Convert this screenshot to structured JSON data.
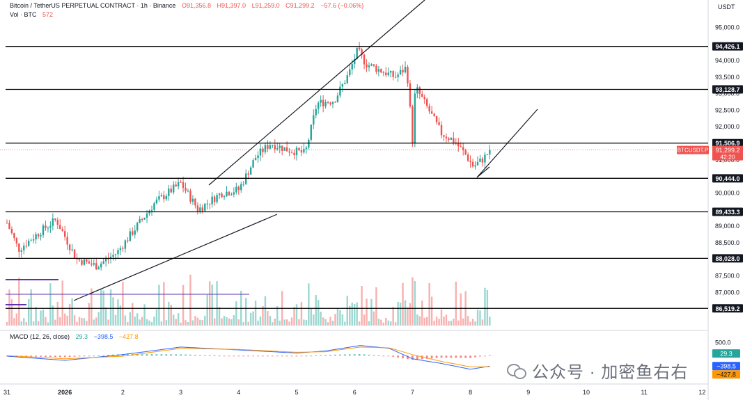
{
  "header": {
    "symbol": "Bitcoin / TetherUS PERPETUAL CONTRACT · 1h · Binance",
    "o": "O91,356.8",
    "h": "H91,397.0",
    "l": "L91,259.0",
    "c": "C91,299.2",
    "chg": "−57.6 (−0.06%)",
    "vol_label": "Vol · BTC",
    "vol_value": "572",
    "macd_label": "MACD (12, 26, close)",
    "macd_hist": "29.3",
    "macd_line": "−398.5",
    "macd_signal": "−427.8"
  },
  "price_axis": {
    "currency": "USDT",
    "ticks": [
      "95,000.0",
      "94,000.0",
      "93,500.0",
      "93,000.0",
      "92,500.0",
      "92,000.0",
      "91,000.0",
      "90,000.0",
      "89,000.0",
      "88,500.0",
      "87,500.0",
      "87,000.0"
    ],
    "levels": [
      94426.1,
      93128.7,
      91506.9,
      90444.0,
      89433.3,
      88028.0,
      86519.2
    ],
    "level_labels": [
      "94,426.1",
      "93,128.7",
      "91,506.9",
      "90,444.0",
      "89,433.3",
      "88,028.0",
      "86,519.2"
    ],
    "current_symbol": "BTCUSDT.P",
    "current_price": "91,299.2",
    "countdown": "42:20",
    "macd_tick": "500.0",
    "macd_hist_tag": "29.3",
    "macd_line_tag": "−398.5",
    "macd_signal_tag": "−427.8"
  },
  "time_axis": [
    "31",
    "2026",
    "2",
    "3",
    "4",
    "5",
    "6",
    "7",
    "8",
    "9",
    "10",
    "11",
    "12"
  ],
  "watermark": "公众号 · 加密鱼右右",
  "colors": {
    "up": "#26a69a",
    "down": "#ef5350",
    "macd_line": "#2962ff",
    "signal_line": "#ff9800",
    "level_line": "#000000",
    "purple": "#5e35b1"
  },
  "chart_data": {
    "type": "candlestick",
    "instrument": "BTCUSDT.P",
    "interval": "1h",
    "x_start": "2025-12-31 00:00",
    "x_ticks": [
      "31",
      "2026",
      "2",
      "3",
      "4",
      "5",
      "6",
      "7",
      "8",
      "9",
      "10",
      "11",
      "12"
    ],
    "ylim": [
      86000,
      95700
    ],
    "last_price": 91299.2,
    "horizontal_levels": [
      94426.1,
      93128.7,
      91506.9,
      90444.0,
      89433.3,
      88028.0,
      86519.2
    ],
    "price_path_days": [
      0.0,
      0.2,
      0.55,
      0.85,
      1.2,
      1.55,
      1.9,
      2.2,
      2.55,
      3.0,
      3.3,
      3.7,
      4.0,
      4.3,
      4.55,
      4.85,
      5.15,
      5.35,
      5.65,
      5.9,
      6.05,
      6.2,
      6.45,
      6.7,
      6.9,
      7.0,
      7.05,
      7.25,
      7.5,
      7.7,
      7.9,
      8.05,
      8.2,
      8.35
    ],
    "price_path_values": [
      89100,
      88300,
      88800,
      89200,
      88000,
      87800,
      88200,
      88900,
      89700,
      90300,
      89500,
      90000,
      90100,
      91100,
      91500,
      91300,
      91200,
      92700,
      92800,
      93600,
      94300,
      93900,
      93700,
      93500,
      93800,
      91600,
      93200,
      92600,
      91800,
      91600,
      91200,
      90800,
      91000,
      91299.2
    ],
    "macd_ylim": [
      -900,
      700
    ],
    "macd_line": [
      [
        0,
        -20
      ],
      [
        1,
        -180
      ],
      [
        2,
        40
      ],
      [
        3,
        330
      ],
      [
        4,
        220
      ],
      [
        5,
        100
      ],
      [
        5.5,
        180
      ],
      [
        6.1,
        390
      ],
      [
        6.6,
        280
      ],
      [
        7.0,
        -120
      ],
      [
        7.5,
        -300
      ],
      [
        8.0,
        -520
      ],
      [
        8.35,
        -398.5
      ]
    ],
    "signal_line": [
      [
        0,
        0
      ],
      [
        1,
        -120
      ],
      [
        2,
        -20
      ],
      [
        3,
        280
      ],
      [
        4,
        240
      ],
      [
        5,
        130
      ],
      [
        5.5,
        150
      ],
      [
        6.1,
        330
      ],
      [
        6.6,
        300
      ],
      [
        7.0,
        40
      ],
      [
        7.5,
        -220
      ],
      [
        8.0,
        -430
      ],
      [
        8.35,
        -427.8
      ]
    ]
  }
}
